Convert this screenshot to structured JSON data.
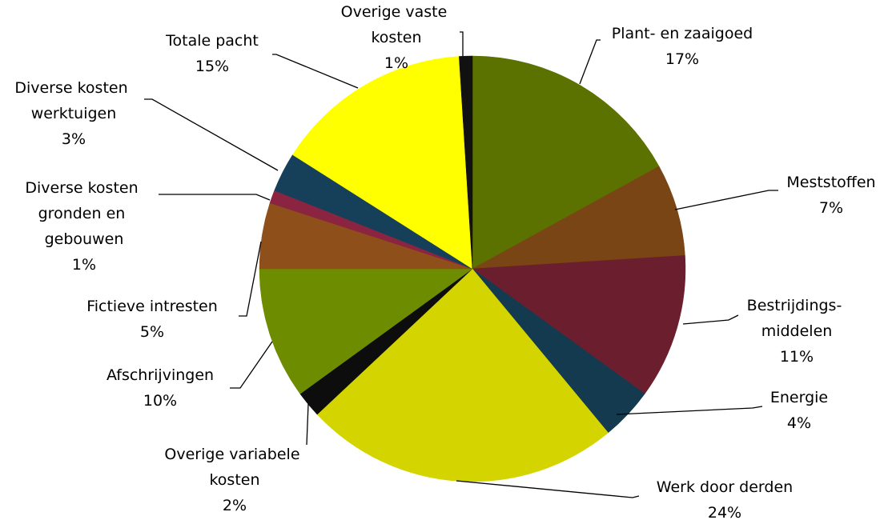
{
  "chart_data": {
    "type": "pie",
    "categories": [
      "Plant- en zaaigoed",
      "Meststoffen",
      "Bestrijdings- middelen",
      "Energie",
      "Werk door derden",
      "Overige variabele kosten",
      "Afschrijvingen",
      "Fictieve intresten",
      "Diverse kosten gronden en gebouwen",
      "Diverse kosten werktuigen",
      "Totale pacht",
      "Overige vaste kosten"
    ],
    "values": [
      17,
      7,
      11,
      4,
      24,
      2,
      10,
      5,
      1,
      3,
      15,
      1
    ],
    "value_labels": [
      "17%",
      "7%",
      "11%",
      "4%",
      "24%",
      "2%",
      "10%",
      "5%",
      "1%",
      "3%",
      "15%",
      "1%"
    ],
    "colors": [
      "#5b7100",
      "#7a4514",
      "#6b1e2e",
      "#133a4e",
      "#d4d400",
      "#0d0d0d",
      "#6e8c00",
      "#8e4f1a",
      "#8b2440",
      "#16405a",
      "#ffff00",
      "#111111"
    ]
  }
}
